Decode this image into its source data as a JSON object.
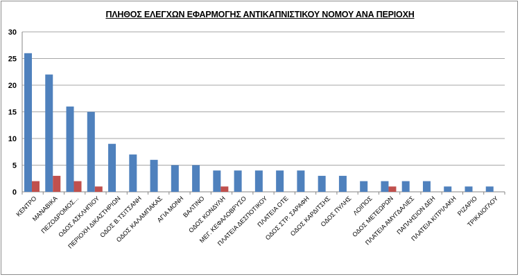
{
  "chart_data": {
    "type": "bar",
    "title": "ΠΛΗΘΟΣ ΕΛΕΓΧΩΝ ΕΦΑΡΜΟΓΗΣ ΑΝΤΙΚΑΠΝΙΣΤΙΚΟΥ ΝΟΜΟΥ ΑΝΑ ΠΕΡΙΟΧΗ",
    "xlabel": "",
    "ylabel": "",
    "ylim": [
      0,
      30
    ],
    "yticks": [
      0,
      5,
      10,
      15,
      20,
      25,
      30
    ],
    "grid": true,
    "legend": "none",
    "categories": [
      "ΚΕΝΤΡΟ",
      "ΜΑΝΑΒΙΚΑ",
      "ΠΕΖΟΔΡΟΜΟΣ...",
      "ΟΔΟΣ ΑΣΚΛΗΠΙΟΥ",
      "ΠΕΡΙΟΧΗ ΔΙΚΑΣΤΗΡΙΩΝ",
      "ΟΔΟΣ Β.ΤΣΙΤΣΑΝΗ",
      "ΟΔΟΣ ΚΑΛΑΜΠΑΚΑΣ",
      "ΑΓΙΑ ΜΟΝΗ",
      "ΒΑΛΤΙΝΟ",
      "ΟΔΟΣ ΚΟΝΔΥΛΗ",
      "ΜΕΓ. ΚΕΦΑΛΟΒΡΥΣΟ",
      "ΠΛΑΤΕΙΑ ΔΕΣΠΟΤΙΚΟΥ",
      "ΠΛΑΤΕΙΑ ΟΤΕ",
      "ΟΔΟΣ ΣΤΡ. ΣΑΡΑΦΗ",
      "ΟΔΟΣ ΚΑΡΔΙΤΣΗΣ",
      "ΟΔΟΣ ΠΥΛΗΣ",
      "ΛΟΙΠΟΣ",
      "ΟΔΟΣ ΜΕΤΕΩΡΩΝ",
      "ΠΛΑΤΕΙΑ ΑΜΥΓΔΑΛΙΕΣ",
      "ΠΑΠΛΗΣΙΟΝ ΔΕΗ",
      "ΠΛΑΤΕΙΑ ΚΙΤΡΙΛΑΚΗ",
      "ΡΙΖΑΡΙΟ",
      "ΤΡΙΚΑΙΟΓΛΟΥ"
    ],
    "series": [
      {
        "color": "#4f81bd",
        "values": [
          26,
          22,
          16,
          15,
          9,
          7,
          6,
          5,
          5,
          4,
          4,
          4,
          4,
          4,
          3,
          3,
          2,
          2,
          2,
          2,
          1,
          1,
          1
        ]
      },
      {
        "color": "#c0504d",
        "values": [
          2,
          3,
          2,
          1,
          0,
          0,
          0,
          0,
          0,
          1,
          0,
          0,
          0,
          0,
          0,
          0,
          0,
          1,
          0,
          0,
          0,
          0,
          0
        ]
      }
    ]
  }
}
